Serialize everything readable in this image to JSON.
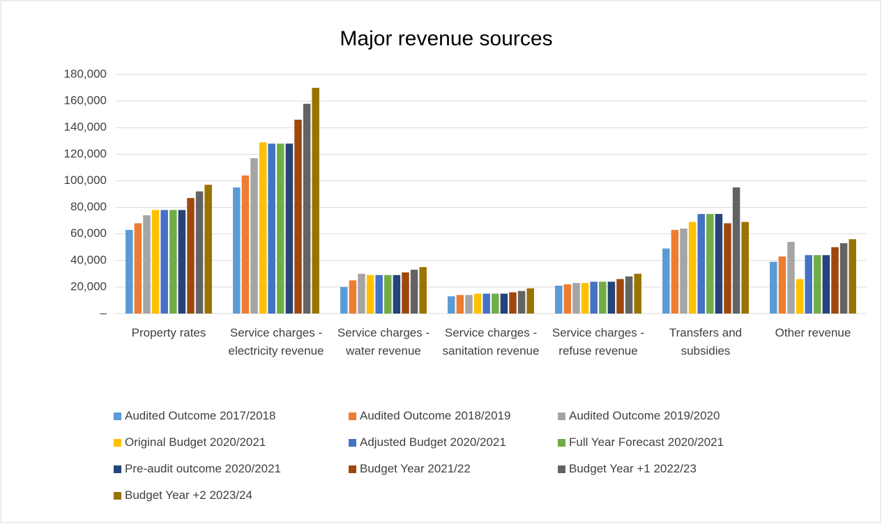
{
  "chart_data": {
    "type": "bar",
    "title": "Major revenue sources",
    "categories": [
      "Property rates",
      "Service charges - electricity revenue",
      "Service charges - water revenue",
      "Service charges - sanitation revenue",
      "Service charges - refuse revenue",
      "Transfers and subsidies",
      "Other revenue"
    ],
    "series": [
      {
        "name": "Audited Outcome 2017/2018",
        "color": "#5b9bd5",
        "values": [
          63000,
          95000,
          20000,
          13000,
          21000,
          49000,
          39000
        ]
      },
      {
        "name": "Audited Outcome 2018/2019",
        "color": "#ed7d31",
        "values": [
          68000,
          104000,
          25000,
          14000,
          22000,
          63000,
          43000
        ]
      },
      {
        "name": "Audited Outcome 2019/2020",
        "color": "#a5a5a5",
        "values": [
          74000,
          117000,
          30000,
          14000,
          23000,
          64000,
          54000
        ]
      },
      {
        "name": "Original Budget 2020/2021",
        "color": "#ffc000",
        "values": [
          78000,
          129000,
          29000,
          15000,
          23000,
          69000,
          26000
        ]
      },
      {
        "name": "Adjusted Budget 2020/2021",
        "color": "#4472c4",
        "values": [
          78000,
          128000,
          29000,
          15000,
          24000,
          75000,
          44000
        ]
      },
      {
        "name": "Full Year Forecast 2020/2021",
        "color": "#70ad47",
        "values": [
          78000,
          128000,
          29000,
          15000,
          24000,
          75000,
          44000
        ]
      },
      {
        "name": "Pre-audit outcome 2020/2021",
        "color": "#264478",
        "values": [
          78000,
          128000,
          29000,
          15000,
          24000,
          75000,
          44000
        ]
      },
      {
        "name": "Budget Year 2021/22",
        "color": "#9e480e",
        "values": [
          87000,
          146000,
          31000,
          16000,
          26000,
          68000,
          50000
        ]
      },
      {
        "name": "Budget Year +1 2022/23",
        "color": "#636363",
        "values": [
          92000,
          158000,
          33000,
          17000,
          28000,
          95000,
          53000
        ]
      },
      {
        "name": "Budget Year +2 2023/24",
        "color": "#997300",
        "values": [
          97000,
          170000,
          35000,
          19000,
          30000,
          69000,
          56000
        ]
      }
    ],
    "ylim": [
      0,
      180000
    ],
    "yticks": [
      {
        "value": 0,
        "label": "–"
      },
      {
        "value": 20000,
        "label": "20,000"
      },
      {
        "value": 40000,
        "label": "40,000"
      },
      {
        "value": 60000,
        "label": "60,000"
      },
      {
        "value": 80000,
        "label": "80,000"
      },
      {
        "value": 100000,
        "label": "100,000"
      },
      {
        "value": 120000,
        "label": "120,000"
      },
      {
        "value": 140000,
        "label": "140,000"
      },
      {
        "value": 160000,
        "label": "160,000"
      },
      {
        "value": 180000,
        "label": "180,000"
      }
    ],
    "grid": true,
    "legend": "bottom"
  }
}
